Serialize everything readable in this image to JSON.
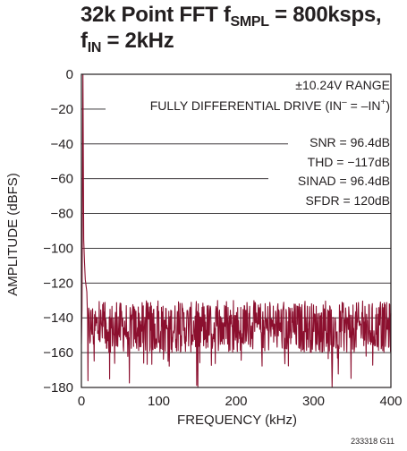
{
  "title": {
    "line1_prefix": "32k Point FFT f",
    "line1_sub": "SMPL",
    "line1_suffix": " = 800ksps,",
    "line2_prefix": "f",
    "line2_sub": "IN",
    "line2_suffix": " = 2kHz"
  },
  "figure_id": "233318 G11",
  "colors": {
    "trace": "#8b0f2e",
    "grid": "#231f20",
    "text": "#231f20"
  },
  "chart_data": {
    "type": "line",
    "xlabel": "FREQUENCY (kHz)",
    "ylabel": "AMPLITUDE (dBFS)",
    "xlim": [
      0,
      400
    ],
    "ylim": [
      -180,
      0
    ],
    "xticks": [
      0,
      100,
      200,
      300,
      400
    ],
    "yticks": [
      0,
      -20,
      -40,
      -60,
      -80,
      -100,
      -120,
      -140,
      -160,
      -180
    ],
    "xtick_labels": [
      "0",
      "100",
      "200",
      "300",
      "400"
    ],
    "ytick_labels": [
      "0",
      "−20",
      "−40",
      "−60",
      "−80",
      "−100",
      "−120",
      "−140",
      "−160",
      "−180"
    ],
    "grid": "horizontal",
    "annotations": {
      "range": "±10.24V RANGE",
      "drive_prefix": "FULLY DIFFERENTIAL DRIVE (IN",
      "drive_sup1": "–",
      "drive_mid": " = –IN",
      "drive_sup2": "+",
      "drive_suffix": ")",
      "snr": "SNR = 96.4dB",
      "thd": "THD = −117dB",
      "sinad": "SINAD = 96.4dB",
      "sfdr": "SFDR = 120dB"
    },
    "series": [
      {
        "fundamental": {
          "x": 2,
          "y": 0
        },
        "near_fundamental_skirt": [
          {
            "x": 1,
            "y": -135
          },
          {
            "x": 3,
            "y": -95
          },
          {
            "x": 4,
            "y": -108
          },
          {
            "x": 5,
            "y": -118
          },
          {
            "x": 7,
            "y": -125
          }
        ],
        "noise_floor": {
          "typical_range": [
            -160,
            -131
          ],
          "median": -145,
          "min_spike": -180
        }
      }
    ]
  }
}
